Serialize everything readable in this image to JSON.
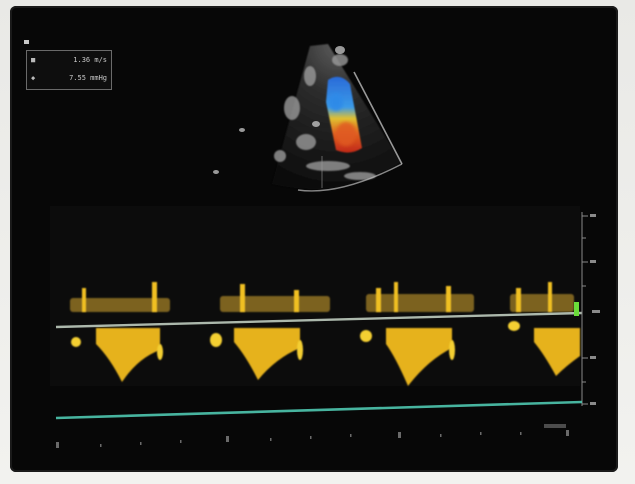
{
  "photo": {
    "subject": "echocardiography monitor",
    "colors": {
      "screen": "#070707",
      "doppler_spectrum": "#e0b020",
      "baseline": "#c8d6c8",
      "sweep_line": "#4fc7b0",
      "color_flow_red": "#e04020",
      "color_flow_blue": "#2a6ad8",
      "marker_green": "#6bdc3a"
    }
  },
  "overlay": {
    "rows": [
      {
        "glyph": "■",
        "value": "1.36 m/s"
      },
      {
        "glyph": "◆",
        "value": "7.55 mmHg"
      }
    ]
  },
  "doppler": {
    "cycles": 4
  }
}
